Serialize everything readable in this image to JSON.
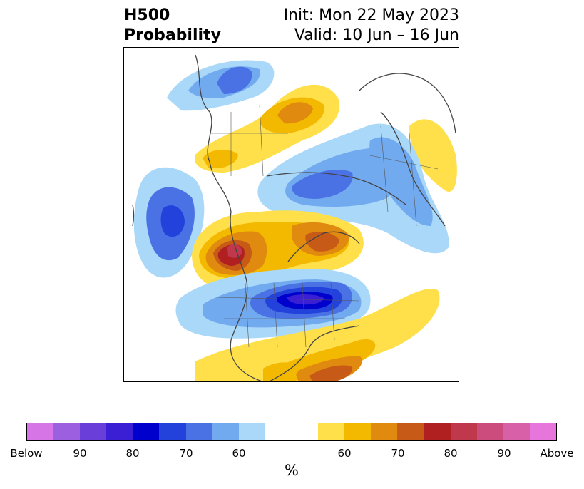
{
  "title": {
    "left_line1": "H500",
    "left_line2": "Probability",
    "right_line1": "Init: Mon 22 May 2023",
    "right_line2": "Valid: 10 Jun – 16 Jun"
  },
  "map": {
    "legend_colors": {
      "below_90_plus": "#d676e6",
      "below_85": "#9b5fe0",
      "below_80_plus": "#6a3ed8",
      "below_80": "#3a1fd4",
      "below_75": "#0000cd",
      "below_70": "#2342dc",
      "below_65": "#4a72e4",
      "below_60_plus": "#72aaf0",
      "below_60": "#aad8f8",
      "neutral": "#ffffff",
      "above_60": "#ffe04a",
      "above_65": "#f3b800",
      "above_70": "#e08a10",
      "above_75": "#c85a18",
      "above_80": "#b02020",
      "above_85": "#c0384c",
      "above_88": "#cc4c7e",
      "above_90": "#d860a8",
      "above_90_plus": "#e676dc"
    }
  },
  "colorbar": {
    "segments": [
      "#d676e6",
      "#9b5fe0",
      "#6a3ed8",
      "#3a1fd4",
      "#0000cd",
      "#2342dc",
      "#4a72e4",
      "#72aaf0",
      "#aad8f8",
      "#ffffff",
      "#ffe04a",
      "#f3b800",
      "#e08a10",
      "#c85a18",
      "#b02020",
      "#c0384c",
      "#cc4c7e",
      "#d860a8",
      "#e676dc"
    ],
    "ticks": [
      "Below",
      "90",
      "80",
      "70",
      "60",
      "60",
      "70",
      "80",
      "90",
      "Above"
    ],
    "unit": "%"
  }
}
